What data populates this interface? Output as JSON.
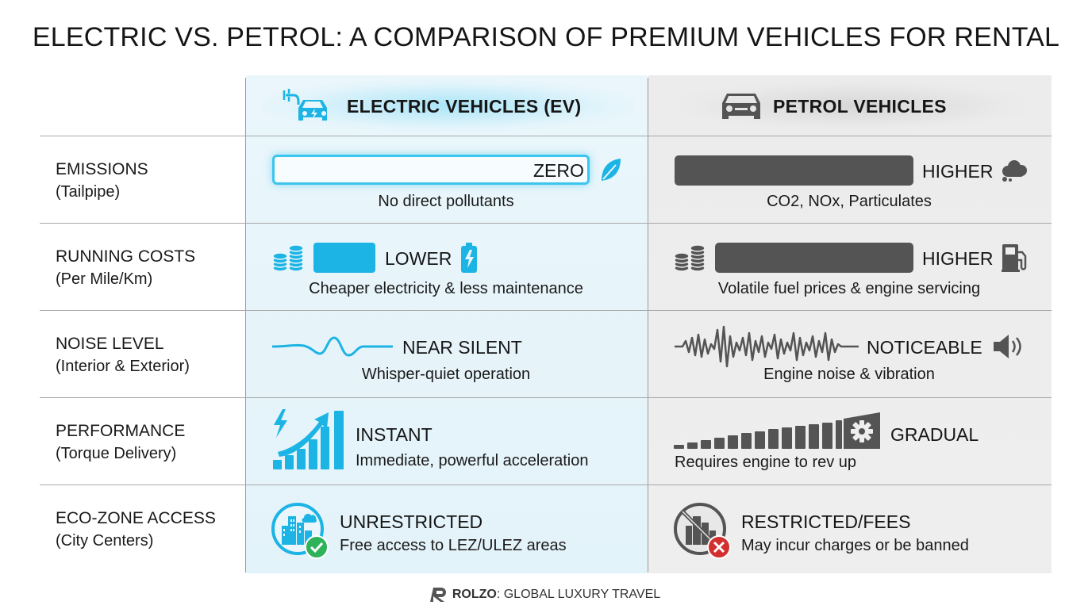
{
  "title": "ELECTRIC VS. PETROL: A COMPARISON OF PREMIUM VEHICLES FOR RENTAL",
  "columns": {
    "ev": {
      "label": "ELECTRIC VEHICLES (EV)",
      "icon": "electric-car-plug-icon",
      "accent": "#1cb4e4"
    },
    "petrol": {
      "label": "PETROL VEHICLES",
      "icon": "car-icon",
      "accent": "#545454"
    }
  },
  "rows": [
    {
      "label": "EMISSIONS",
      "sublabel": "(Tailpipe)",
      "ev": {
        "value": "ZERO",
        "desc": "No direct pollutants",
        "icon": "leaf-icon"
      },
      "petrol": {
        "value": "HIGHER",
        "desc": "CO2, NOx, Particulates",
        "icon": "smoke-cloud-icon"
      }
    },
    {
      "label": "RUNNING COSTS",
      "sublabel": "(Per Mile/Km)",
      "ev": {
        "value": "LOWER",
        "desc": "Cheaper electricity & less maintenance",
        "icon": "battery-charging-icon"
      },
      "petrol": {
        "value": "HIGHER",
        "desc": "Volatile fuel prices & engine servicing",
        "icon": "fuel-pump-icon"
      }
    },
    {
      "label": "NOISE LEVEL",
      "sublabel": "(Interior & Exterior)",
      "ev": {
        "value": "NEAR SILENT",
        "desc": "Whisper-quiet operation",
        "icon": "smooth-wave-icon"
      },
      "petrol": {
        "value": "NOTICEABLE",
        "desc": "Engine noise & vibration",
        "icon": "speaker-icon"
      }
    },
    {
      "label": "PERFORMANCE",
      "sublabel": "(Torque Delivery)",
      "ev": {
        "value": "INSTANT",
        "desc": "Immediate, powerful acceleration",
        "icon": "lightning-growth-chart-icon"
      },
      "petrol": {
        "value": "GRADUAL",
        "desc": "Requires engine to rev up",
        "icon": "gear-icon"
      }
    },
    {
      "label": "ECO-ZONE ACCESS",
      "sublabel": "(City Centers)",
      "ev": {
        "value": "UNRESTRICTED",
        "desc": "Free access to LEZ/ULEZ areas",
        "icon": "city-check-icon"
      },
      "petrol": {
        "value": "RESTRICTED/FEES",
        "desc": "May incur charges or be banned",
        "icon": "city-banned-icon"
      }
    }
  ],
  "footer": {
    "brand": "ROLZO",
    "tagline": ": GLOBAL LUXURY TRAVEL",
    "logo_icon": "rolzo-logo-icon"
  }
}
